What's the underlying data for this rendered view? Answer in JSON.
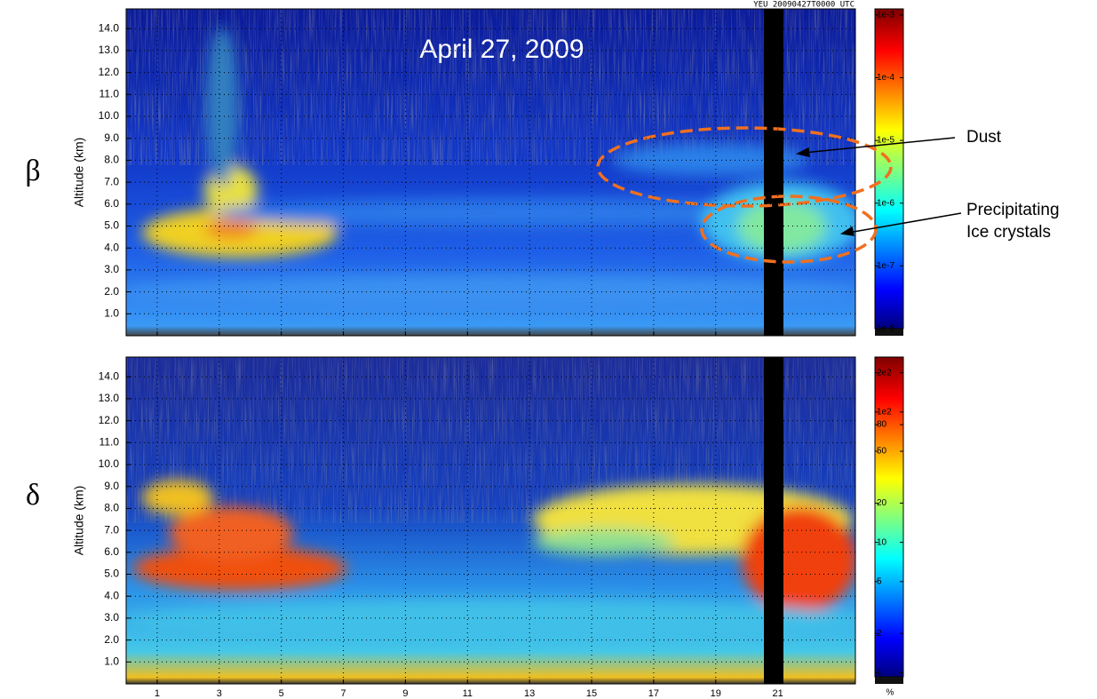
{
  "chart_data": [
    {
      "type": "heatmap",
      "title": "April 27, 2009",
      "header": "YEU  20090427T0000  UTC",
      "symbol": "β",
      "ylabel": "Altitude (km)",
      "xlim": [
        0,
        23.5
      ],
      "ylim": [
        0,
        14.9
      ],
      "yticks": [
        {
          "value": 1,
          "label": "1.0"
        },
        {
          "value": 2,
          "label": "2.0"
        },
        {
          "value": 3,
          "label": "3.0"
        },
        {
          "value": 4,
          "label": "4.0"
        },
        {
          "value": 5,
          "label": "5.0"
        },
        {
          "value": 6,
          "label": "6.0"
        },
        {
          "value": 7,
          "label": "7.0"
        },
        {
          "value": 8,
          "label": "8.0"
        },
        {
          "value": 9,
          "label": "9.0"
        },
        {
          "value": 10,
          "label": "10.0"
        },
        {
          "value": 11,
          "label": "11.0"
        },
        {
          "value": 12,
          "label": "12.0"
        },
        {
          "value": 13,
          "label": "13.0"
        },
        {
          "value": 14,
          "label": "14.0"
        }
      ],
      "grid": true,
      "colorbar": {
        "scale": "log",
        "lim": [
          1e-08,
          0.00125
        ],
        "ticks": [
          {
            "value": 0.001,
            "label": "1e-3"
          },
          {
            "value": 0.0001,
            "label": "1e-4"
          },
          {
            "value": 1e-05,
            "label": "1e-5"
          },
          {
            "value": 1e-06,
            "label": "1e-6"
          },
          {
            "value": 1e-07,
            "label": "1e-7"
          },
          {
            "value": 1e-08,
            "label": "1e-8"
          }
        ]
      },
      "annotations": [
        {
          "text": "Dust"
        },
        {
          "lines": [
            "Precipitating",
            "Ice crystals"
          ]
        }
      ]
    },
    {
      "type": "heatmap",
      "symbol": "δ",
      "ylabel": "Altitude (km)",
      "xlim": [
        0,
        23.5
      ],
      "ylim": [
        0,
        14.9
      ],
      "xticks": [
        1,
        3,
        5,
        7,
        9,
        11,
        13,
        15,
        17,
        19,
        21
      ],
      "yticks": [
        {
          "value": 1,
          "label": "1.0"
        },
        {
          "value": 2,
          "label": "2.0"
        },
        {
          "value": 3,
          "label": "3.0"
        },
        {
          "value": 4,
          "label": "4.0"
        },
        {
          "value": 5,
          "label": "5.0"
        },
        {
          "value": 6,
          "label": "6.0"
        },
        {
          "value": 7,
          "label": "7.0"
        },
        {
          "value": 8,
          "label": "8.0"
        },
        {
          "value": 9,
          "label": "9.0"
        },
        {
          "value": 10,
          "label": "10.0"
        },
        {
          "value": 11,
          "label": "11.0"
        },
        {
          "value": 12,
          "label": "12.0"
        },
        {
          "value": 13,
          "label": "13.0"
        },
        {
          "value": 14,
          "label": "14.0"
        }
      ],
      "grid": true,
      "colorbar": {
        "scale": "log",
        "lim": [
          0.93,
          264
        ],
        "unit": "%",
        "ticks": [
          {
            "value": 200,
            "label": "2e2"
          },
          {
            "value": 100,
            "label": "1e2"
          },
          80,
          50,
          20,
          10,
          5,
          2,
          1
        ]
      }
    }
  ]
}
